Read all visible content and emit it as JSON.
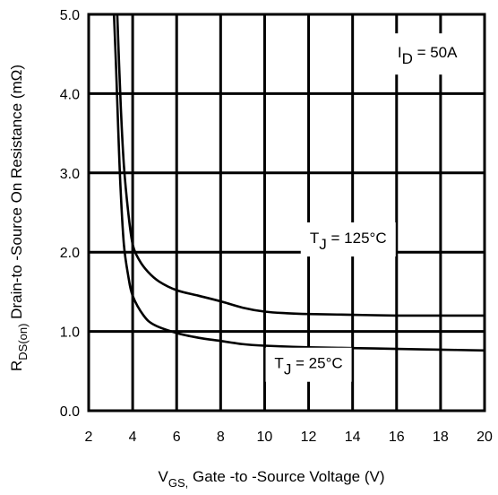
{
  "chart_data": {
    "type": "line",
    "xlabel": {
      "main": "V",
      "sub": "GS,",
      "rest": " Gate -to -Source Voltage  (V)"
    },
    "ylabel": {
      "main": "R",
      "sub": "DS(on)",
      "rest": "  Drain-to -Source On Resistance (mΩ)"
    },
    "xlim": [
      2,
      20
    ],
    "ylim": [
      0,
      5
    ],
    "x_ticks": [
      "2",
      "4",
      "6",
      "8",
      "10",
      "12",
      "14",
      "16",
      "18",
      "20"
    ],
    "y_ticks": [
      "0.0",
      "1.0",
      "2.0",
      "3.0",
      "4.0",
      "5.0"
    ],
    "grid": true,
    "condition": {
      "main": "I",
      "sub": "D",
      "rest": " = 50A"
    },
    "series": [
      {
        "name": "T_J = 125°C",
        "label": {
          "main": "T",
          "sub": "J",
          "rest": " = 125°C"
        },
        "x": [
          3.3,
          3.45,
          3.6,
          3.8,
          4.0,
          4.3,
          4.7,
          5.2,
          6.0,
          7.0,
          8.0,
          9.0,
          10.0,
          11.0,
          12.0,
          14.0,
          16.0,
          18.0,
          20.0
        ],
        "y": [
          5.0,
          3.9,
          3.1,
          2.5,
          2.1,
          1.9,
          1.75,
          1.63,
          1.52,
          1.45,
          1.38,
          1.3,
          1.25,
          1.23,
          1.22,
          1.21,
          1.2,
          1.2,
          1.2
        ]
      },
      {
        "name": "T_J = 25°C",
        "label": {
          "main": "T",
          "sub": "J",
          "rest": " = 25°C"
        },
        "x": [
          3.15,
          3.25,
          3.35,
          3.45,
          3.6,
          3.8,
          4.0,
          4.5,
          5.0,
          6.0,
          7.0,
          8.0,
          9.0,
          10.0,
          12.0,
          14.0,
          16.0,
          18.0,
          20.0
        ],
        "y": [
          5.0,
          4.3,
          3.5,
          2.8,
          2.1,
          1.7,
          1.45,
          1.2,
          1.08,
          0.98,
          0.92,
          0.88,
          0.84,
          0.82,
          0.8,
          0.79,
          0.78,
          0.77,
          0.76
        ]
      }
    ]
  }
}
